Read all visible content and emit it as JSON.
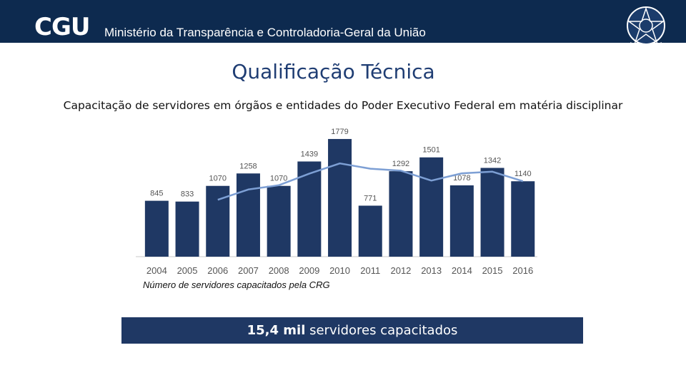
{
  "header": {
    "logo": "CGU",
    "ministry": "Ministério da Transparência e Controladoria-Geral da União",
    "seal_icon": "brazil-coat-of-arms-icon"
  },
  "slide": {
    "title": "Qualificação Técnica",
    "subtitle": "Capacitação de servidores em órgãos e entidades do Poder Executivo Federal em matéria disciplinar"
  },
  "chart_data": {
    "type": "bar",
    "categories": [
      "2004",
      "2005",
      "2006",
      "2007",
      "2008",
      "2009",
      "2010",
      "2011",
      "2012",
      "2013",
      "2014",
      "2015",
      "2016"
    ],
    "values": [
      845,
      833,
      1070,
      1258,
      1070,
      1439,
      1779,
      771,
      1292,
      1501,
      1078,
      1342,
      1140
    ],
    "trend": [
      null,
      null,
      860,
      1015,
      1080,
      1255,
      1410,
      1330,
      1300,
      1150,
      1260,
      1285,
      1140
    ],
    "ylim": [
      0,
      1800
    ],
    "caption": "Número de servidores capacitados pela CRG",
    "bar_color": "#1f3864",
    "trend_color": "#7d9fd4"
  },
  "banner": {
    "bold": "15,4 mil",
    "rest": " servidores capacitados"
  }
}
